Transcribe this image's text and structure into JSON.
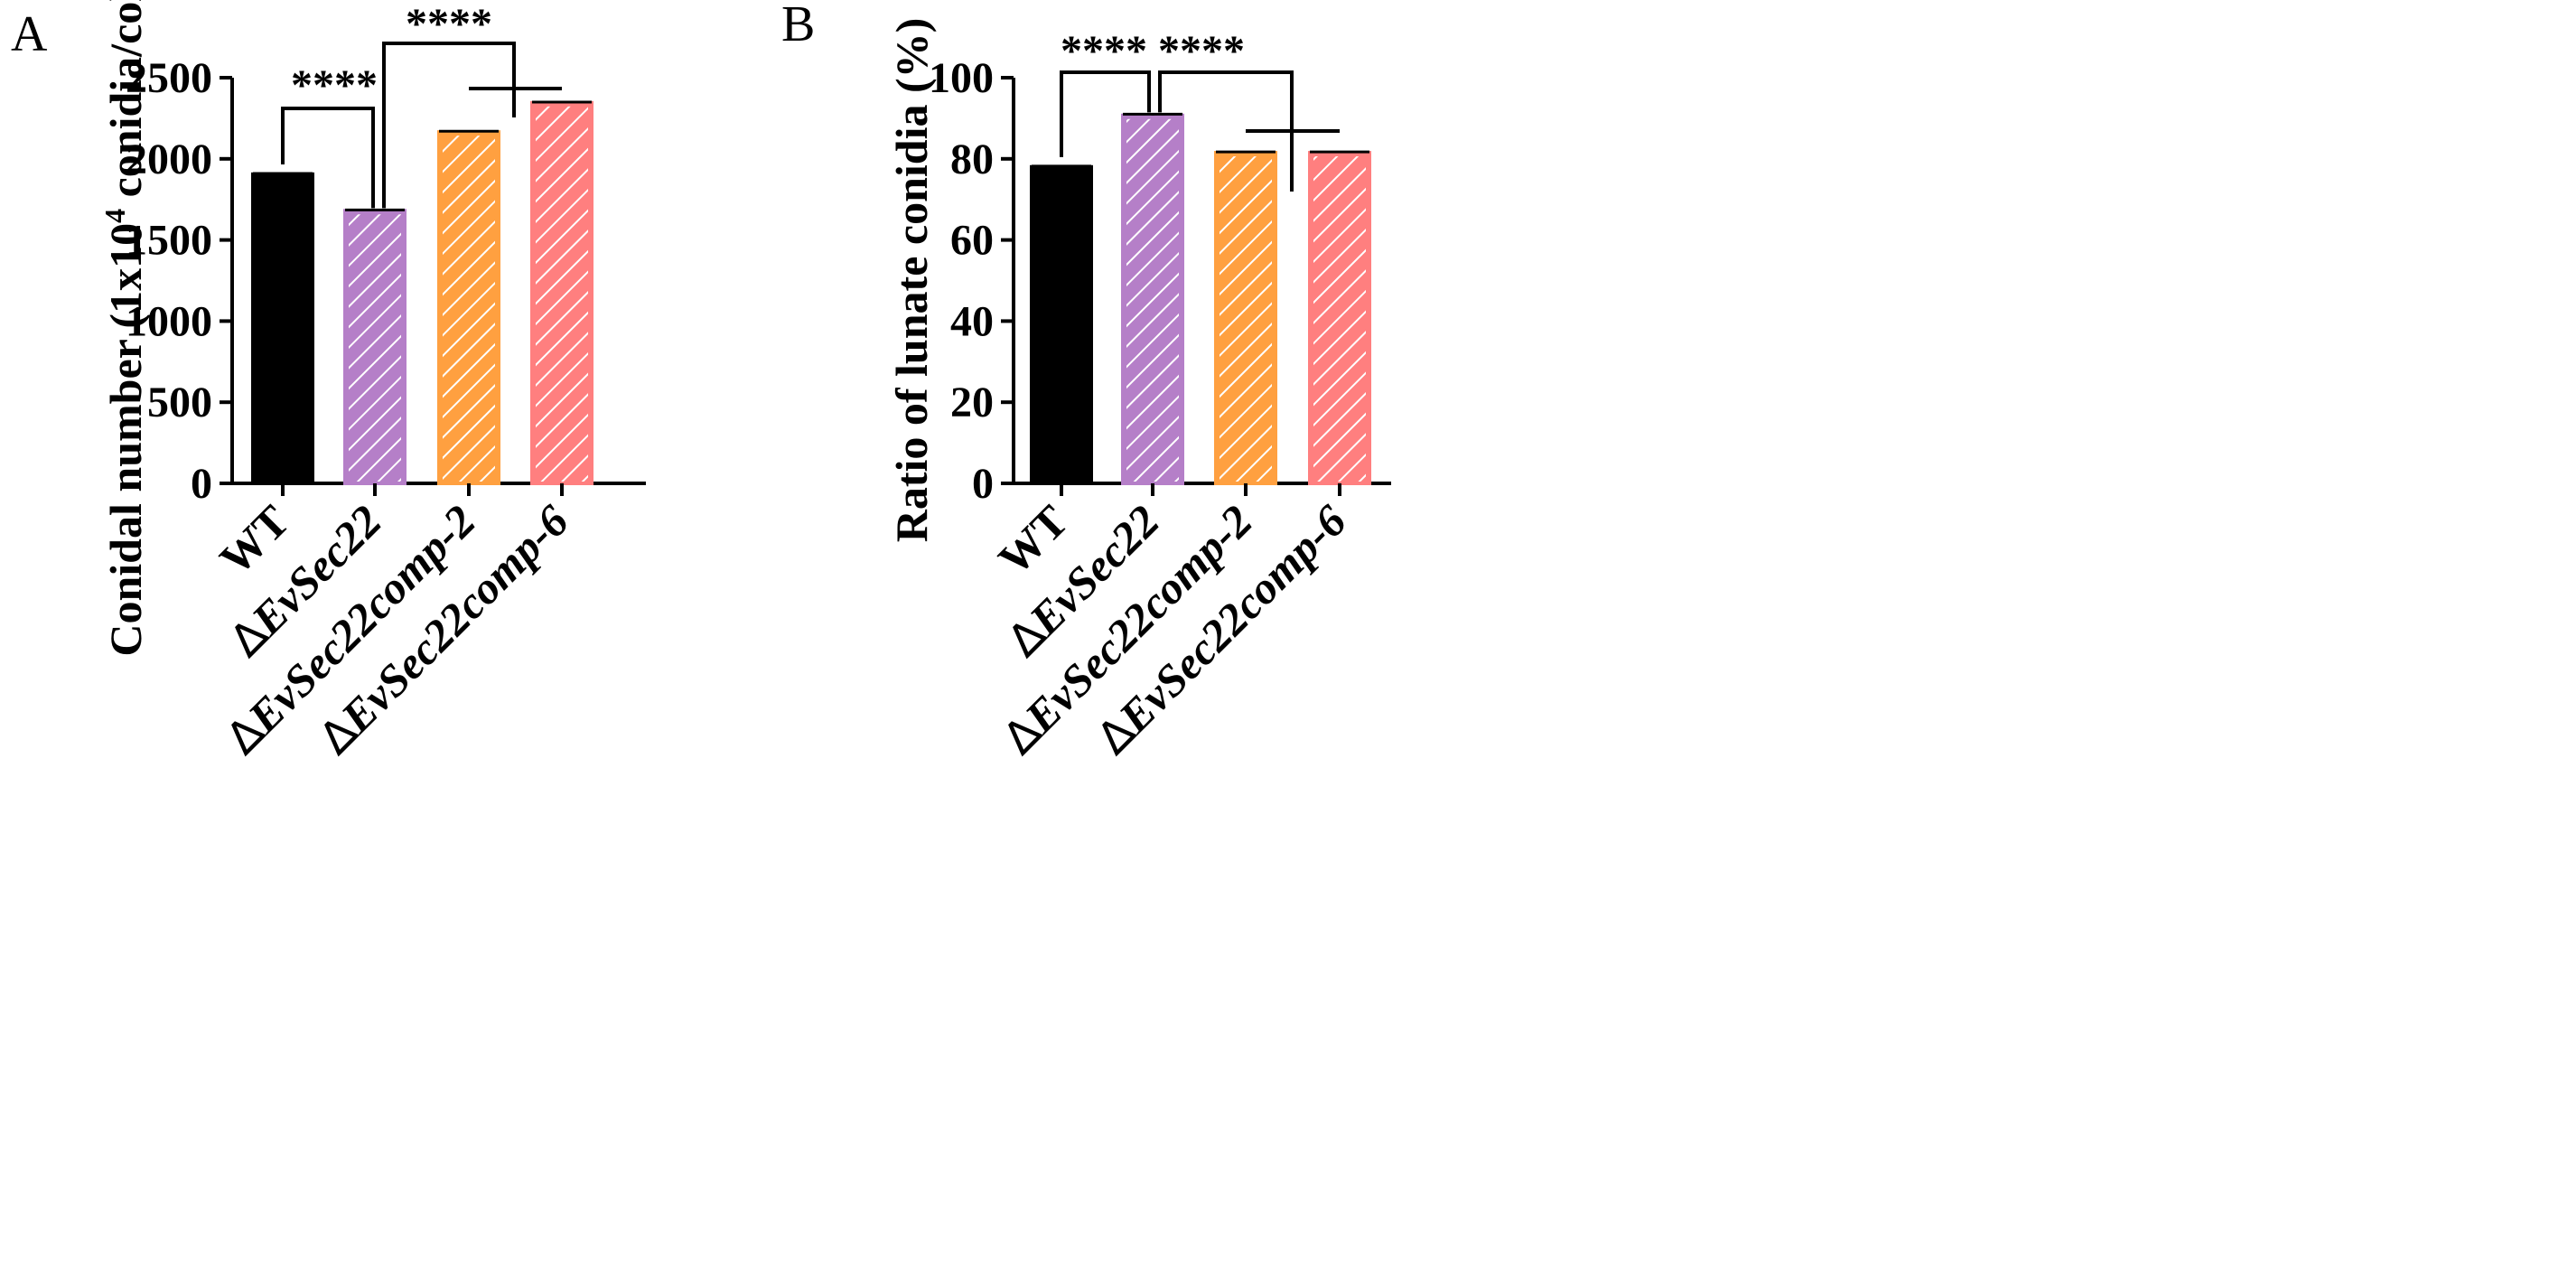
{
  "chart_data": [
    {
      "panel": "A",
      "type": "bar",
      "ylabel_parts": [
        "Conidal number (1x10",
        "4",
        " conidia/colony)"
      ],
      "ylim": [
        0,
        2500
      ],
      "yticks": [
        0,
        500,
        1000,
        1500,
        2000,
        2500
      ],
      "categories": [
        {
          "prefix": "",
          "name": "WT"
        },
        {
          "prefix": "∆",
          "name": "EvSec22"
        },
        {
          "prefix": "∆",
          "name": "EvSec22comp-2"
        },
        {
          "prefix": "∆",
          "name": "EvSec22comp-6"
        }
      ],
      "values": [
        1905,
        1680,
        2165,
        2345
      ],
      "errors": [
        5,
        5,
        5,
        5
      ],
      "colors": [
        "#000000",
        "#b57fc8",
        "#ffa040",
        "#ff7f7f"
      ],
      "hatched": [
        false,
        true,
        true,
        true
      ],
      "significance": [
        {
          "label": "****"
        },
        {
          "label": "****"
        }
      ]
    },
    {
      "panel": "B",
      "type": "bar",
      "ylabel_parts": [
        "Ratio of lunate conidia (%)"
      ],
      "ylim": [
        0,
        100
      ],
      "yticks": [
        0,
        20,
        40,
        60,
        80,
        100
      ],
      "categories": [
        {
          "prefix": "",
          "name": "WT"
        },
        {
          "prefix": "∆",
          "name": "EvSec22"
        },
        {
          "prefix": "∆",
          "name": "EvSec22comp-2"
        },
        {
          "prefix": "∆",
          "name": "EvSec22comp-6"
        }
      ],
      "values": [
        78,
        90.7,
        81.5,
        81.5
      ],
      "errors": [
        0.2,
        0.3,
        0.2,
        0.2
      ],
      "colors": [
        "#000000",
        "#b57fc8",
        "#ffa040",
        "#ff7f7f"
      ],
      "hatched": [
        false,
        true,
        true,
        true
      ],
      "significance": [
        {
          "label": "****"
        },
        {
          "label": "****"
        }
      ]
    }
  ]
}
